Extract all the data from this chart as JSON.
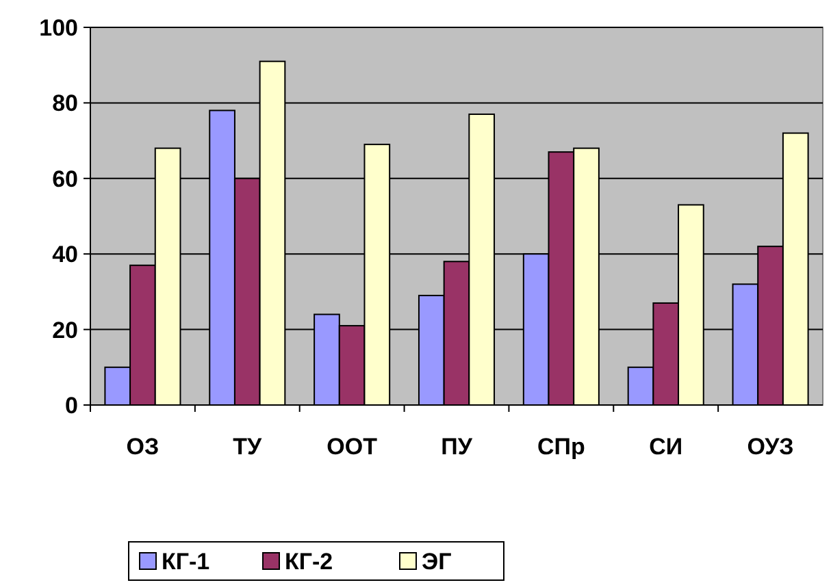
{
  "chart_data": {
    "type": "bar",
    "categories": [
      "ОЗ",
      "ТУ",
      "ООТ",
      "ПУ",
      "СПр",
      "СИ",
      "ОУЗ"
    ],
    "series": [
      {
        "name": "КГ-1",
        "color": "#9999ff",
        "values": [
          10,
          78,
          24,
          29,
          40,
          10,
          32
        ]
      },
      {
        "name": "КГ-2",
        "color": "#993366",
        "values": [
          37,
          60,
          21,
          38,
          67,
          27,
          42
        ]
      },
      {
        "name": "ЭГ",
        "color": "#ffffcc",
        "values": [
          68,
          91,
          69,
          77,
          68,
          53,
          72
        ]
      }
    ],
    "ylim": [
      0,
      100
    ],
    "yticks": [
      0,
      20,
      40,
      60,
      80,
      100
    ],
    "grid": "y",
    "legend": "bottom left"
  }
}
